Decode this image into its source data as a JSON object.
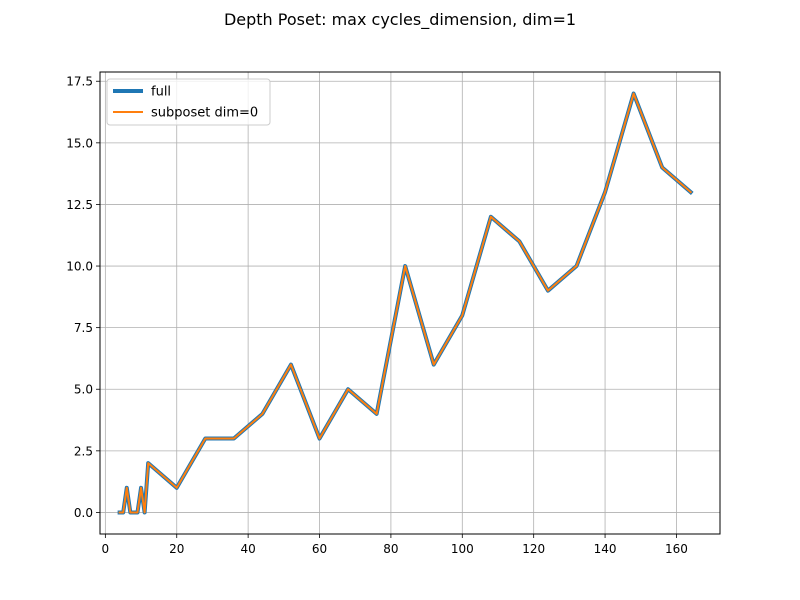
{
  "chart_data": {
    "type": "line",
    "title": "Depth Poset: max cycles_dimension, dim=1",
    "xlabel": "",
    "ylabel": "",
    "xlim": [
      -1.5,
      172.2
    ],
    "ylim": [
      -0.875,
      17.875
    ],
    "xticks": [
      0,
      20,
      40,
      60,
      80,
      100,
      120,
      140,
      160
    ],
    "yticks": [
      0.0,
      2.5,
      5.0,
      7.5,
      10.0,
      12.5,
      15.0,
      17.5
    ],
    "xtick_labels": [
      "0",
      "20",
      "40",
      "60",
      "80",
      "100",
      "120",
      "140",
      "160"
    ],
    "ytick_labels": [
      "0.0",
      "2.5",
      "5.0",
      "7.5",
      "10.0",
      "12.5",
      "15.0",
      "17.5"
    ],
    "grid": true,
    "legend_placement": "upper-left",
    "series": [
      {
        "name": "full",
        "color": "#1f77b4",
        "x": [
          4,
          5,
          6,
          7,
          8,
          9,
          10,
          11,
          12,
          20,
          28,
          36,
          44,
          52,
          60,
          68,
          76,
          84,
          92,
          100,
          108,
          116,
          124,
          132,
          140,
          148,
          156,
          164
        ],
        "y": [
          0,
          0,
          1,
          0,
          0,
          0,
          1,
          0,
          2,
          1,
          3,
          3,
          4,
          6,
          3,
          5,
          4,
          10,
          6,
          8,
          12,
          11,
          9,
          10,
          13,
          17,
          14,
          13
        ]
      },
      {
        "name": "subposet dim=0",
        "color": "#ff7f0e",
        "x": [
          4,
          5,
          6,
          7,
          8,
          9,
          10,
          11,
          12,
          20,
          28,
          36,
          44,
          52,
          60,
          68,
          76,
          84,
          92,
          100,
          108,
          116,
          124,
          132,
          140,
          148,
          156,
          164
        ],
        "y": [
          0,
          0,
          1,
          0,
          0,
          0,
          1,
          0,
          2,
          1,
          3,
          3,
          4,
          6,
          3,
          5,
          4,
          10,
          6,
          8,
          12,
          11,
          9,
          10,
          13,
          17,
          14,
          13
        ]
      }
    ]
  }
}
